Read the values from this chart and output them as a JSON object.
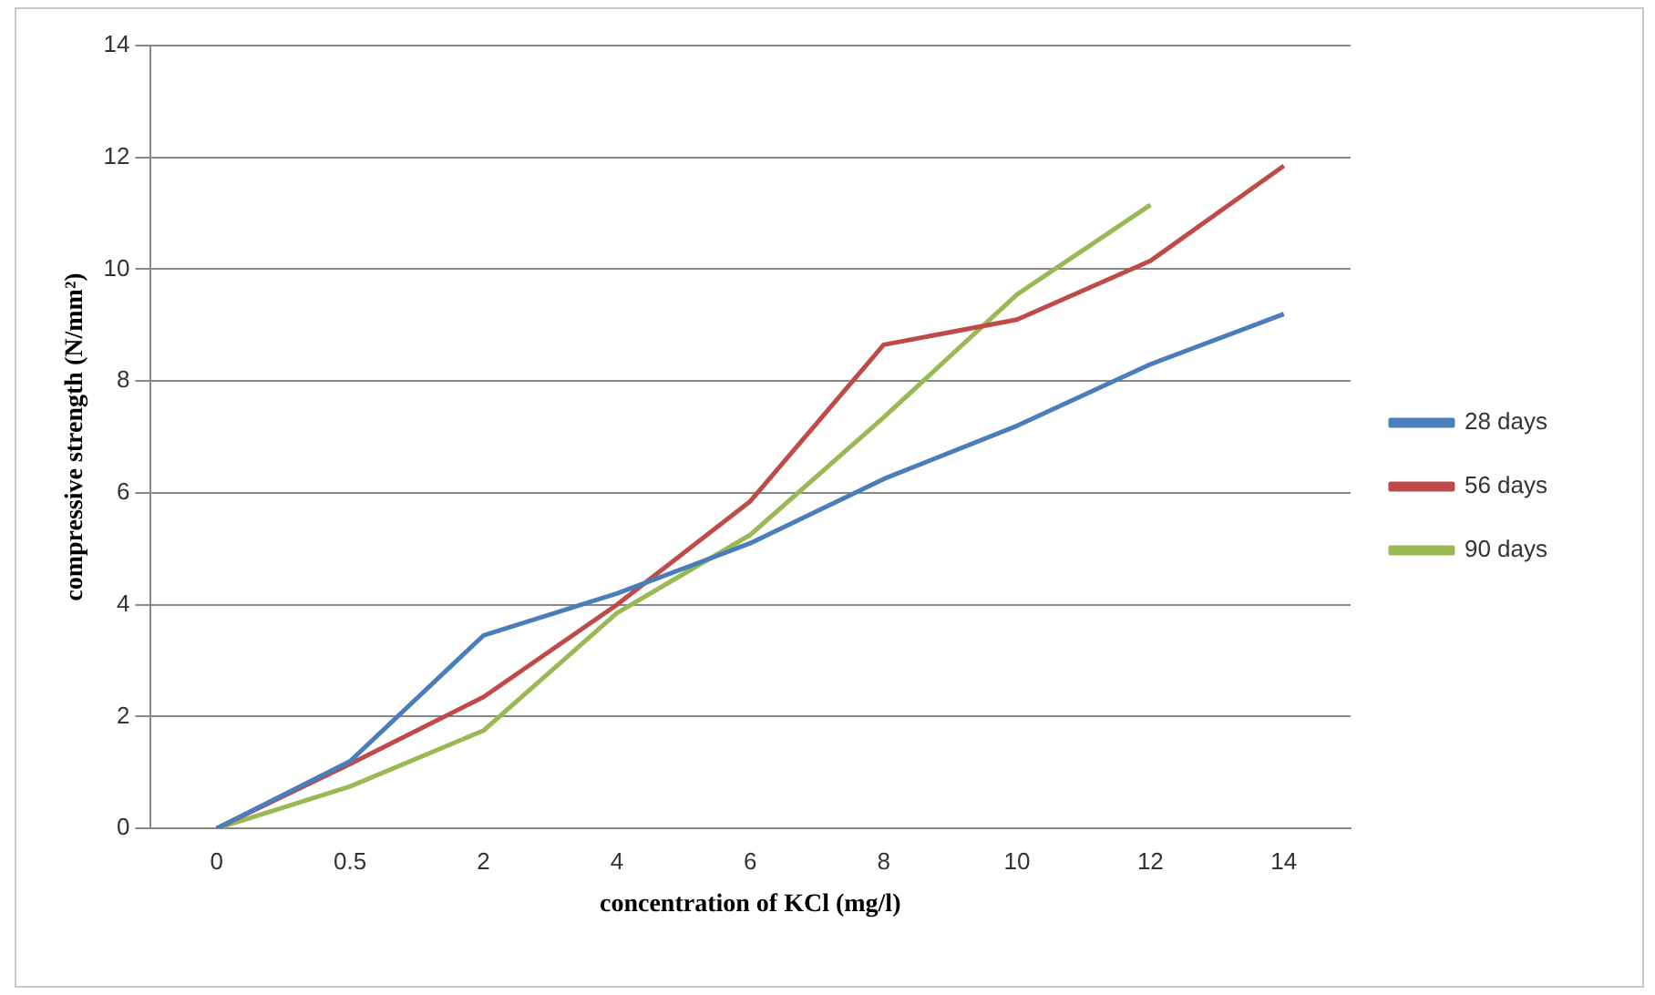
{
  "chart_data": {
    "type": "line",
    "xlabel": "concentration of KCl (mg/l)",
    "ylabel": "compressive strength (N/mm²)",
    "categories": [
      "0",
      "0.5",
      "2",
      "4",
      "6",
      "8",
      "10",
      "12",
      "14"
    ],
    "series": [
      {
        "name": "28 days",
        "color": "#4a7ebb",
        "values": [
          0,
          1.2,
          3.45,
          4.2,
          5.1,
          6.25,
          7.2,
          8.3,
          9.2
        ]
      },
      {
        "name": "56 days",
        "color": "#be4b48",
        "values": [
          0,
          1.15,
          2.35,
          4.0,
          5.85,
          8.65,
          9.1,
          10.15,
          11.85
        ]
      },
      {
        "name": "90 days",
        "color": "#98b954",
        "values": [
          0,
          0.75,
          1.75,
          3.85,
          5.25,
          7.35,
          9.55,
          11.15,
          null
        ]
      }
    ],
    "ylim": [
      0,
      14
    ],
    "yticks": [
      0,
      2,
      4,
      6,
      8,
      10,
      12,
      14
    ],
    "grid": "y",
    "legend": "right",
    "marker": "none",
    "line_style": "solid"
  }
}
